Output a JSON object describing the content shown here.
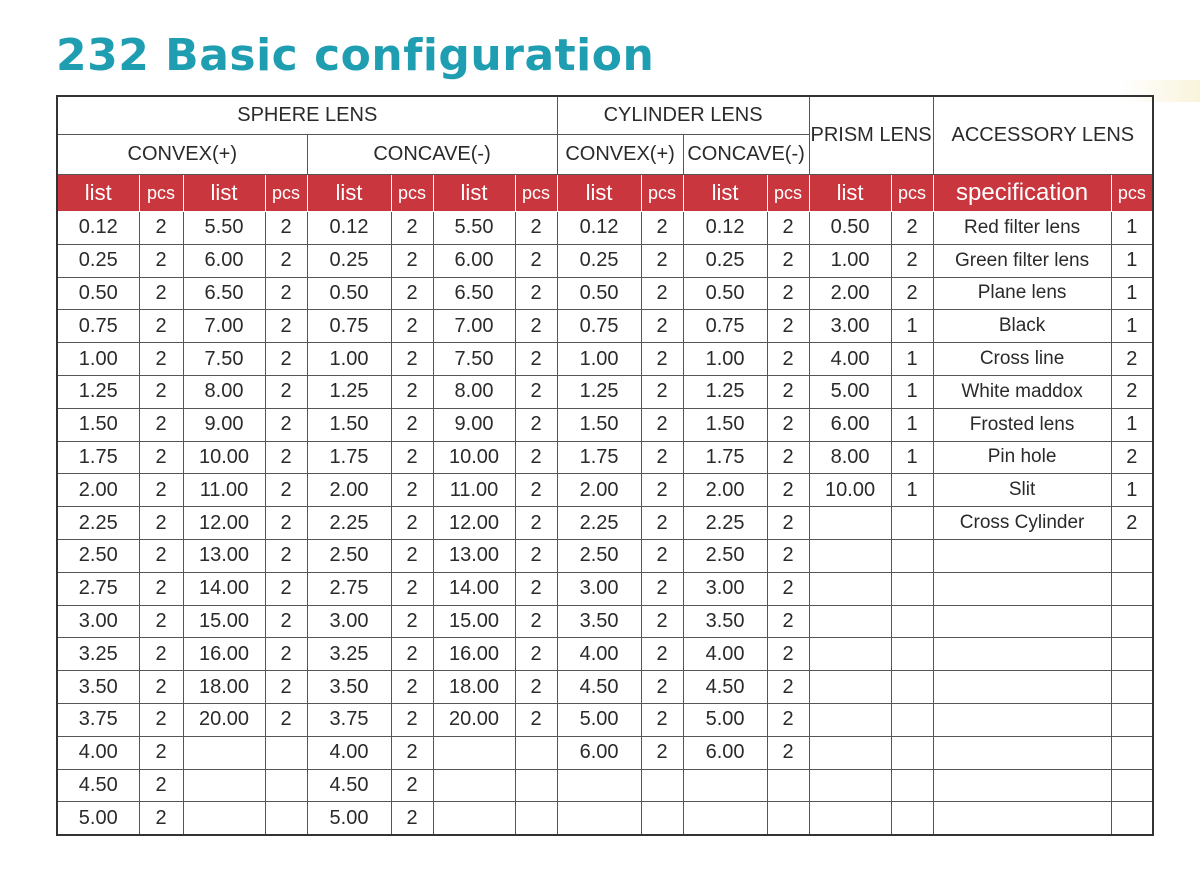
{
  "title": "232 Basic configuration",
  "headers": {
    "sphere": "SPHERE LENS",
    "cylinder": "CYLINDER LENS",
    "prism": "PRISM LENS",
    "accessory": "ACCESSORY LENS",
    "convex": "CONVEX(+)",
    "concave": "CONCAVE(-)",
    "list": "list",
    "pcs": "pcs",
    "specification": "specification"
  },
  "rows": [
    [
      "0.12",
      "2",
      "5.50",
      "2",
      "0.12",
      "2",
      "5.50",
      "2",
      "0.12",
      "2",
      "0.12",
      "2",
      "0.50",
      "2",
      "Red filter lens",
      "1"
    ],
    [
      "0.25",
      "2",
      "6.00",
      "2",
      "0.25",
      "2",
      "6.00",
      "2",
      "0.25",
      "2",
      "0.25",
      "2",
      "1.00",
      "2",
      "Green filter lens",
      "1"
    ],
    [
      "0.50",
      "2",
      "6.50",
      "2",
      "0.50",
      "2",
      "6.50",
      "2",
      "0.50",
      "2",
      "0.50",
      "2",
      "2.00",
      "2",
      "Plane lens",
      "1"
    ],
    [
      "0.75",
      "2",
      "7.00",
      "2",
      "0.75",
      "2",
      "7.00",
      "2",
      "0.75",
      "2",
      "0.75",
      "2",
      "3.00",
      "1",
      "Black",
      "1"
    ],
    [
      "1.00",
      "2",
      "7.50",
      "2",
      "1.00",
      "2",
      "7.50",
      "2",
      "1.00",
      "2",
      "1.00",
      "2",
      "4.00",
      "1",
      "Cross line",
      "2"
    ],
    [
      "1.25",
      "2",
      "8.00",
      "2",
      "1.25",
      "2",
      "8.00",
      "2",
      "1.25",
      "2",
      "1.25",
      "2",
      "5.00",
      "1",
      "White maddox",
      "2"
    ],
    [
      "1.50",
      "2",
      "9.00",
      "2",
      "1.50",
      "2",
      "9.00",
      "2",
      "1.50",
      "2",
      "1.50",
      "2",
      "6.00",
      "1",
      "Frosted lens",
      "1"
    ],
    [
      "1.75",
      "2",
      "10.00",
      "2",
      "1.75",
      "2",
      "10.00",
      "2",
      "1.75",
      "2",
      "1.75",
      "2",
      "8.00",
      "1",
      "Pin  hole",
      "2"
    ],
    [
      "2.00",
      "2",
      "11.00",
      "2",
      "2.00",
      "2",
      "11.00",
      "2",
      "2.00",
      "2",
      "2.00",
      "2",
      "10.00",
      "1",
      "Slit",
      "1"
    ],
    [
      "2.25",
      "2",
      "12.00",
      "2",
      "2.25",
      "2",
      "12.00",
      "2",
      "2.25",
      "2",
      "2.25",
      "2",
      "",
      "",
      "Cross Cylinder",
      "2"
    ],
    [
      "2.50",
      "2",
      "13.00",
      "2",
      "2.50",
      "2",
      "13.00",
      "2",
      "2.50",
      "2",
      "2.50",
      "2",
      "",
      "",
      "",
      ""
    ],
    [
      "2.75",
      "2",
      "14.00",
      "2",
      "2.75",
      "2",
      "14.00",
      "2",
      "3.00",
      "2",
      "3.00",
      "2",
      "",
      "",
      "",
      ""
    ],
    [
      "3.00",
      "2",
      "15.00",
      "2",
      "3.00",
      "2",
      "15.00",
      "2",
      "3.50",
      "2",
      "3.50",
      "2",
      "",
      "",
      "",
      ""
    ],
    [
      "3.25",
      "2",
      "16.00",
      "2",
      "3.25",
      "2",
      "16.00",
      "2",
      "4.00",
      "2",
      "4.00",
      "2",
      "",
      "",
      "",
      ""
    ],
    [
      "3.50",
      "2",
      "18.00",
      "2",
      "3.50",
      "2",
      "18.00",
      "2",
      "4.50",
      "2",
      "4.50",
      "2",
      "",
      "",
      "",
      ""
    ],
    [
      "3.75",
      "2",
      "20.00",
      "2",
      "3.75",
      "2",
      "20.00",
      "2",
      "5.00",
      "2",
      "5.00",
      "2",
      "",
      "",
      "",
      ""
    ],
    [
      "4.00",
      "2",
      "",
      "",
      "4.00",
      "2",
      "",
      "",
      "6.00",
      "2",
      "6.00",
      "2",
      "",
      "",
      "",
      ""
    ],
    [
      "4.50",
      "2",
      "",
      "",
      "4.50",
      "2",
      "",
      "",
      "",
      "",
      "",
      "",
      "",
      "",
      "",
      ""
    ],
    [
      "5.00",
      "2",
      "",
      "",
      "5.00",
      "2",
      "",
      "",
      "",
      "",
      "",
      "",
      "",
      "",
      "",
      ""
    ]
  ],
  "colors": {
    "title": "#1f9db1",
    "header_band": "#c9363e",
    "header_text": "#ffffff"
  }
}
